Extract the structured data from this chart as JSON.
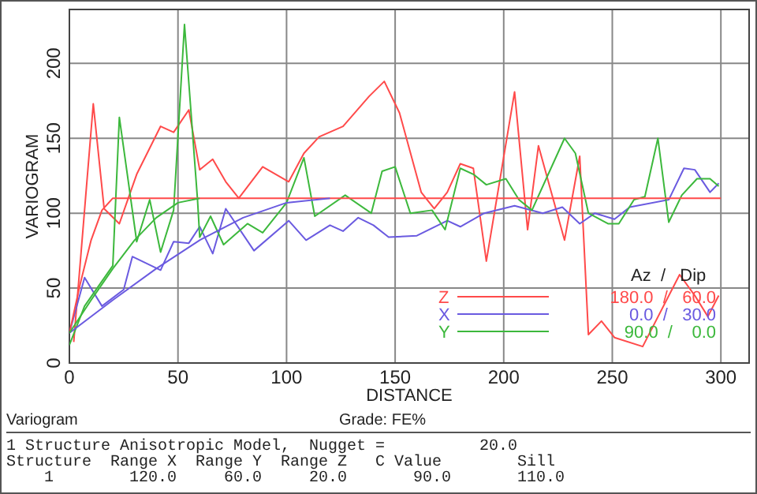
{
  "chart_data": {
    "type": "line",
    "xlabel": "DISTANCE",
    "ylabel": "VARIOGRAM",
    "xlim": [
      0,
      313
    ],
    "ylim": [
      0,
      236
    ],
    "xticks": [
      0,
      50,
      100,
      150,
      200,
      250,
      300
    ],
    "yticks": [
      0,
      50,
      100,
      150,
      200
    ],
    "grid": true,
    "legend": "bottom right",
    "legend_title": "Az  /   Dip",
    "series": [
      {
        "name": "Z",
        "color": "#ff4a4a",
        "x": [
          2,
          11,
          16,
          23,
          31,
          42,
          48,
          55,
          60,
          66,
          72,
          78,
          89,
          101,
          108,
          115,
          126,
          138,
          145,
          152,
          162,
          168,
          174,
          180,
          186,
          192,
          205,
          211,
          216,
          228,
          235,
          239,
          245,
          251,
          264,
          281,
          288,
          294,
          299
        ],
        "values": [
          14,
          173,
          103,
          93,
          126,
          158,
          154,
          169,
          129,
          136,
          121,
          110,
          131,
          121,
          140,
          151,
          158,
          178,
          188,
          167,
          114,
          103,
          114,
          133,
          130,
          68,
          181,
          89,
          145,
          82,
          138,
          19,
          28,
          17,
          11,
          59,
          45,
          31,
          45
        ]
      },
      {
        "name": "X",
        "color": "#6a5ae0",
        "x": [
          0,
          7,
          15,
          25,
          29,
          42,
          48,
          55,
          60,
          66,
          72,
          85,
          101,
          109,
          120,
          126,
          133,
          140,
          147,
          160,
          174,
          180,
          191,
          205,
          218,
          227,
          235,
          242,
          251,
          258,
          276,
          283,
          288,
          295,
          299
        ],
        "values": [
          20,
          57,
          38,
          49,
          71,
          62,
          81,
          80,
          91,
          73,
          103,
          75,
          95,
          82,
          92,
          88,
          97,
          92,
          84,
          85,
          95,
          91,
          100,
          105,
          100,
          104,
          93,
          100,
          96,
          104,
          109,
          130,
          129,
          114,
          120
        ]
      },
      {
        "name": "Y",
        "color": "#3cb83c",
        "x": [
          0,
          7,
          20,
          23,
          31,
          37,
          42,
          48,
          53,
          59,
          60,
          65,
          71,
          82,
          89,
          100,
          108,
          113,
          127,
          139,
          144,
          150,
          157,
          167,
          173,
          180,
          186,
          192,
          201,
          207,
          213,
          228,
          233,
          239,
          248,
          253,
          260,
          265,
          271,
          276,
          282,
          289,
          295,
          299
        ],
        "values": [
          12,
          38,
          65,
          164,
          81,
          109,
          74,
          102,
          226,
          109,
          84,
          98,
          79,
          93,
          87,
          107,
          137,
          98,
          112,
          100,
          128,
          131,
          100,
          102,
          89,
          130,
          126,
          119,
          123,
          109,
          102,
          150,
          140,
          100,
          93,
          93,
          109,
          111,
          150,
          94,
          112,
          123,
          123,
          118
        ]
      },
      {
        "type": "line",
        "color": "#ff4a4a",
        "x": [
          0,
          5,
          10,
          15,
          20,
          300
        ],
        "values": [
          20,
          53,
          82,
          102,
          110,
          110
        ]
      },
      {
        "type": "line",
        "color": "#6a5ae0",
        "x": [
          0,
          20,
          40,
          60,
          80,
          100,
          120
        ],
        "values": [
          20,
          42,
          63,
          82,
          97,
          107,
          110
        ]
      },
      {
        "type": "line",
        "color": "#3cb83c",
        "x": [
          0,
          10,
          20,
          30,
          40,
          50,
          60
        ],
        "values": [
          20,
          42,
          63,
          82,
          97,
          107,
          110
        ]
      }
    ],
    "annotations": [
      "Variogram",
      "Grade: FE%",
      "1 Structure Anisotropic Model,  Nugget =          20.0",
      "Structure  Range X  Range Y  Range Z   C Value        Sill",
      "    1        120.0     60.0     20.0       90.0       110.0",
      "180.0  /   60.0",
      "0.0  /   30.0",
      "90.0  /    0.0"
    ]
  }
}
